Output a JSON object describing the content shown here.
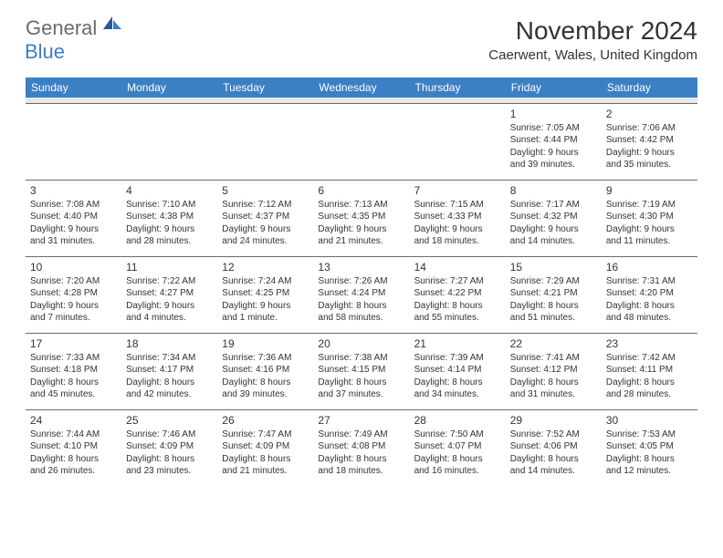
{
  "logo": {
    "general": "General",
    "blue": "Blue"
  },
  "title": "November 2024",
  "location": "Caerwent, Wales, United Kingdom",
  "header_bg": "#3b7fc4",
  "header_fg": "#ffffff",
  "spacer_bg": "#e8e8e8",
  "border_color": "#6b6b6b",
  "text_color": "#333333",
  "logo_gray": "#6b6b6b",
  "logo_blue": "#3b7fc4",
  "dow": [
    "Sunday",
    "Monday",
    "Tuesday",
    "Wednesday",
    "Thursday",
    "Friday",
    "Saturday"
  ],
  "weeks": [
    [
      null,
      null,
      null,
      null,
      null,
      {
        "n": "1",
        "sr": "Sunrise: 7:05 AM",
        "ss": "Sunset: 4:44 PM",
        "d1": "Daylight: 9 hours",
        "d2": "and 39 minutes."
      },
      {
        "n": "2",
        "sr": "Sunrise: 7:06 AM",
        "ss": "Sunset: 4:42 PM",
        "d1": "Daylight: 9 hours",
        "d2": "and 35 minutes."
      }
    ],
    [
      {
        "n": "3",
        "sr": "Sunrise: 7:08 AM",
        "ss": "Sunset: 4:40 PM",
        "d1": "Daylight: 9 hours",
        "d2": "and 31 minutes."
      },
      {
        "n": "4",
        "sr": "Sunrise: 7:10 AM",
        "ss": "Sunset: 4:38 PM",
        "d1": "Daylight: 9 hours",
        "d2": "and 28 minutes."
      },
      {
        "n": "5",
        "sr": "Sunrise: 7:12 AM",
        "ss": "Sunset: 4:37 PM",
        "d1": "Daylight: 9 hours",
        "d2": "and 24 minutes."
      },
      {
        "n": "6",
        "sr": "Sunrise: 7:13 AM",
        "ss": "Sunset: 4:35 PM",
        "d1": "Daylight: 9 hours",
        "d2": "and 21 minutes."
      },
      {
        "n": "7",
        "sr": "Sunrise: 7:15 AM",
        "ss": "Sunset: 4:33 PM",
        "d1": "Daylight: 9 hours",
        "d2": "and 18 minutes."
      },
      {
        "n": "8",
        "sr": "Sunrise: 7:17 AM",
        "ss": "Sunset: 4:32 PM",
        "d1": "Daylight: 9 hours",
        "d2": "and 14 minutes."
      },
      {
        "n": "9",
        "sr": "Sunrise: 7:19 AM",
        "ss": "Sunset: 4:30 PM",
        "d1": "Daylight: 9 hours",
        "d2": "and 11 minutes."
      }
    ],
    [
      {
        "n": "10",
        "sr": "Sunrise: 7:20 AM",
        "ss": "Sunset: 4:28 PM",
        "d1": "Daylight: 9 hours",
        "d2": "and 7 minutes."
      },
      {
        "n": "11",
        "sr": "Sunrise: 7:22 AM",
        "ss": "Sunset: 4:27 PM",
        "d1": "Daylight: 9 hours",
        "d2": "and 4 minutes."
      },
      {
        "n": "12",
        "sr": "Sunrise: 7:24 AM",
        "ss": "Sunset: 4:25 PM",
        "d1": "Daylight: 9 hours",
        "d2": "and 1 minute."
      },
      {
        "n": "13",
        "sr": "Sunrise: 7:26 AM",
        "ss": "Sunset: 4:24 PM",
        "d1": "Daylight: 8 hours",
        "d2": "and 58 minutes."
      },
      {
        "n": "14",
        "sr": "Sunrise: 7:27 AM",
        "ss": "Sunset: 4:22 PM",
        "d1": "Daylight: 8 hours",
        "d2": "and 55 minutes."
      },
      {
        "n": "15",
        "sr": "Sunrise: 7:29 AM",
        "ss": "Sunset: 4:21 PM",
        "d1": "Daylight: 8 hours",
        "d2": "and 51 minutes."
      },
      {
        "n": "16",
        "sr": "Sunrise: 7:31 AM",
        "ss": "Sunset: 4:20 PM",
        "d1": "Daylight: 8 hours",
        "d2": "and 48 minutes."
      }
    ],
    [
      {
        "n": "17",
        "sr": "Sunrise: 7:33 AM",
        "ss": "Sunset: 4:18 PM",
        "d1": "Daylight: 8 hours",
        "d2": "and 45 minutes."
      },
      {
        "n": "18",
        "sr": "Sunrise: 7:34 AM",
        "ss": "Sunset: 4:17 PM",
        "d1": "Daylight: 8 hours",
        "d2": "and 42 minutes."
      },
      {
        "n": "19",
        "sr": "Sunrise: 7:36 AM",
        "ss": "Sunset: 4:16 PM",
        "d1": "Daylight: 8 hours",
        "d2": "and 39 minutes."
      },
      {
        "n": "20",
        "sr": "Sunrise: 7:38 AM",
        "ss": "Sunset: 4:15 PM",
        "d1": "Daylight: 8 hours",
        "d2": "and 37 minutes."
      },
      {
        "n": "21",
        "sr": "Sunrise: 7:39 AM",
        "ss": "Sunset: 4:14 PM",
        "d1": "Daylight: 8 hours",
        "d2": "and 34 minutes."
      },
      {
        "n": "22",
        "sr": "Sunrise: 7:41 AM",
        "ss": "Sunset: 4:12 PM",
        "d1": "Daylight: 8 hours",
        "d2": "and 31 minutes."
      },
      {
        "n": "23",
        "sr": "Sunrise: 7:42 AM",
        "ss": "Sunset: 4:11 PM",
        "d1": "Daylight: 8 hours",
        "d2": "and 28 minutes."
      }
    ],
    [
      {
        "n": "24",
        "sr": "Sunrise: 7:44 AM",
        "ss": "Sunset: 4:10 PM",
        "d1": "Daylight: 8 hours",
        "d2": "and 26 minutes."
      },
      {
        "n": "25",
        "sr": "Sunrise: 7:46 AM",
        "ss": "Sunset: 4:09 PM",
        "d1": "Daylight: 8 hours",
        "d2": "and 23 minutes."
      },
      {
        "n": "26",
        "sr": "Sunrise: 7:47 AM",
        "ss": "Sunset: 4:09 PM",
        "d1": "Daylight: 8 hours",
        "d2": "and 21 minutes."
      },
      {
        "n": "27",
        "sr": "Sunrise: 7:49 AM",
        "ss": "Sunset: 4:08 PM",
        "d1": "Daylight: 8 hours",
        "d2": "and 18 minutes."
      },
      {
        "n": "28",
        "sr": "Sunrise: 7:50 AM",
        "ss": "Sunset: 4:07 PM",
        "d1": "Daylight: 8 hours",
        "d2": "and 16 minutes."
      },
      {
        "n": "29",
        "sr": "Sunrise: 7:52 AM",
        "ss": "Sunset: 4:06 PM",
        "d1": "Daylight: 8 hours",
        "d2": "and 14 minutes."
      },
      {
        "n": "30",
        "sr": "Sunrise: 7:53 AM",
        "ss": "Sunset: 4:05 PM",
        "d1": "Daylight: 8 hours",
        "d2": "and 12 minutes."
      }
    ]
  ]
}
